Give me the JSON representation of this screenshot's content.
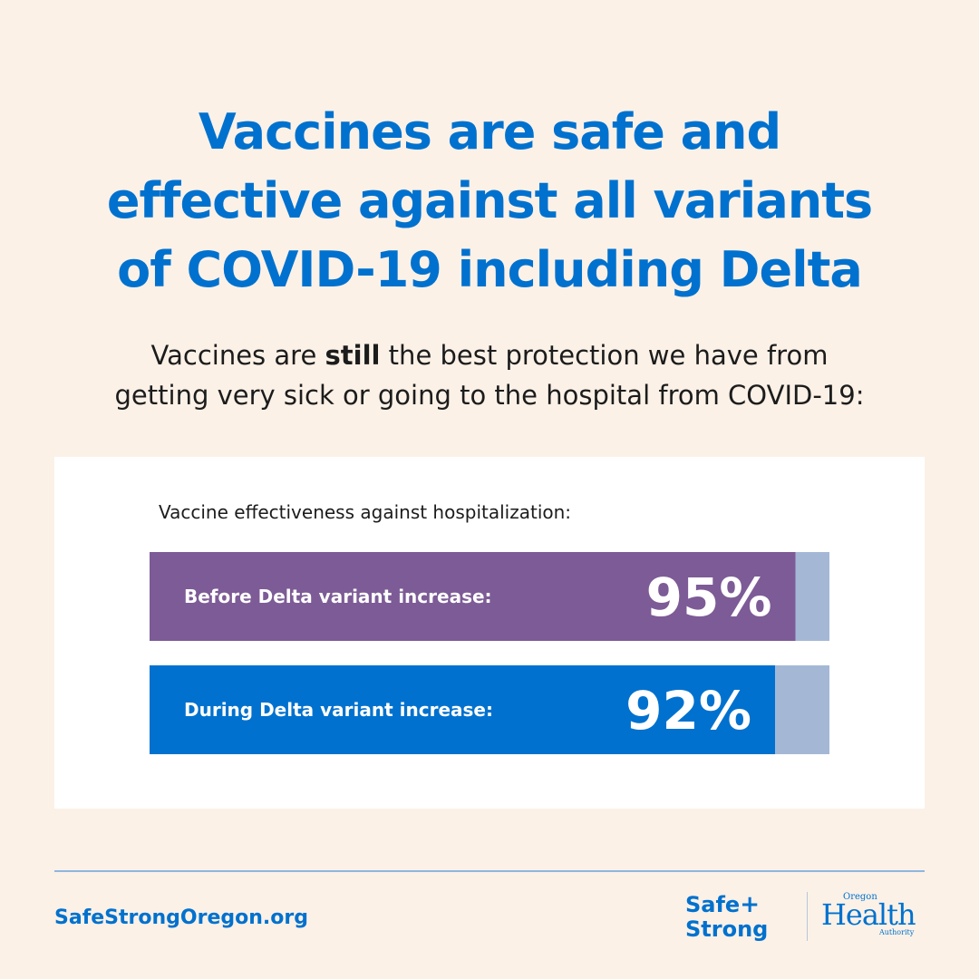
{
  "headline": {
    "line1": "Vaccines are safe and",
    "line2": "effective against all variants",
    "line3": "of COVID-19 including Delta"
  },
  "subheadline": {
    "before": "Vaccines are ",
    "emphasis": "still",
    "after_line1": " the best protection we have from",
    "line2": "getting very sick or going to the hospital from COVID-19:"
  },
  "chart_data": {
    "type": "bar",
    "orientation": "horizontal",
    "title": "Vaccine effectiveness against hospitalization:",
    "categories": [
      "Before Delta variant increase:",
      "During Delta variant increase:"
    ],
    "values": [
      95,
      92
    ],
    "value_labels": [
      "95%",
      "92%"
    ],
    "xlim": [
      0,
      100
    ],
    "grid": false,
    "legend": "none",
    "colors": [
      "#7d5b96",
      "#0071ce"
    ],
    "track_color": "#a4b8d6"
  },
  "footer": {
    "website": "SafeStrongOregon.org",
    "logo_safe": "Safe",
    "logo_plus": "+",
    "logo_strong": "Strong",
    "oha_top": "Oregon",
    "oha_main": "Health",
    "oha_bottom": "Authority",
    "accent": "#0071ce"
  }
}
